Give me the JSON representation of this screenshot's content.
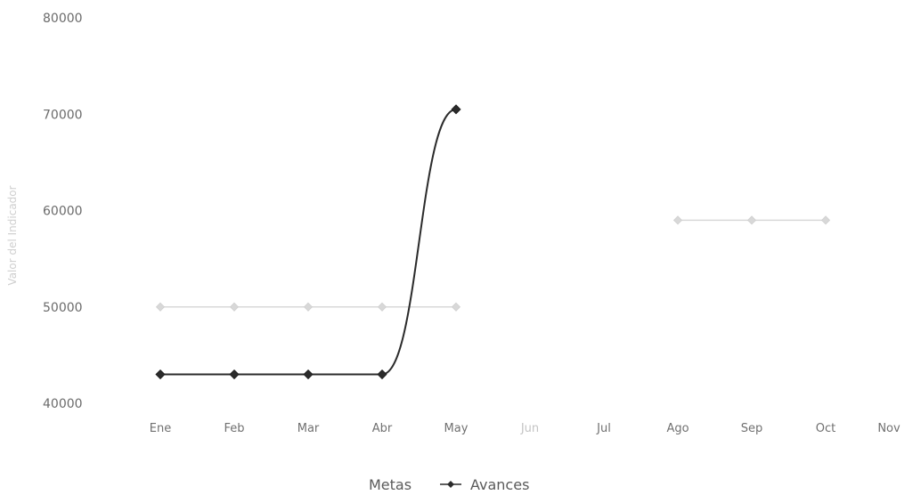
{
  "chart_data": {
    "type": "line",
    "title": "",
    "ylabel": "Valor del Indicador",
    "xlabel": "",
    "categories": [
      "Ene",
      "Feb",
      "Mar",
      "Abr",
      "May",
      "Jun",
      "Jul",
      "Ago",
      "Sep",
      "Oct",
      "Nov"
    ],
    "ylim": [
      40000,
      80000
    ],
    "yticks": [
      40000,
      50000,
      60000,
      70000,
      80000
    ],
    "ytick_labels": [
      "40000",
      "50000",
      "60000",
      "70000",
      "80000"
    ],
    "grid": false,
    "legend_position": "bottom-center",
    "series": [
      {
        "name": "Metas",
        "color": "#d8d8d8",
        "marker": "diamond",
        "values": [
          50000,
          50000,
          50000,
          50000,
          50000,
          null,
          null,
          59000,
          59000,
          59000,
          null
        ]
      },
      {
        "name": "Avances",
        "color": "#2b2b2b",
        "marker": "diamond",
        "values": [
          43000,
          43000,
          43000,
          43000,
          70500,
          null,
          null,
          null,
          null,
          null,
          null
        ]
      }
    ]
  }
}
